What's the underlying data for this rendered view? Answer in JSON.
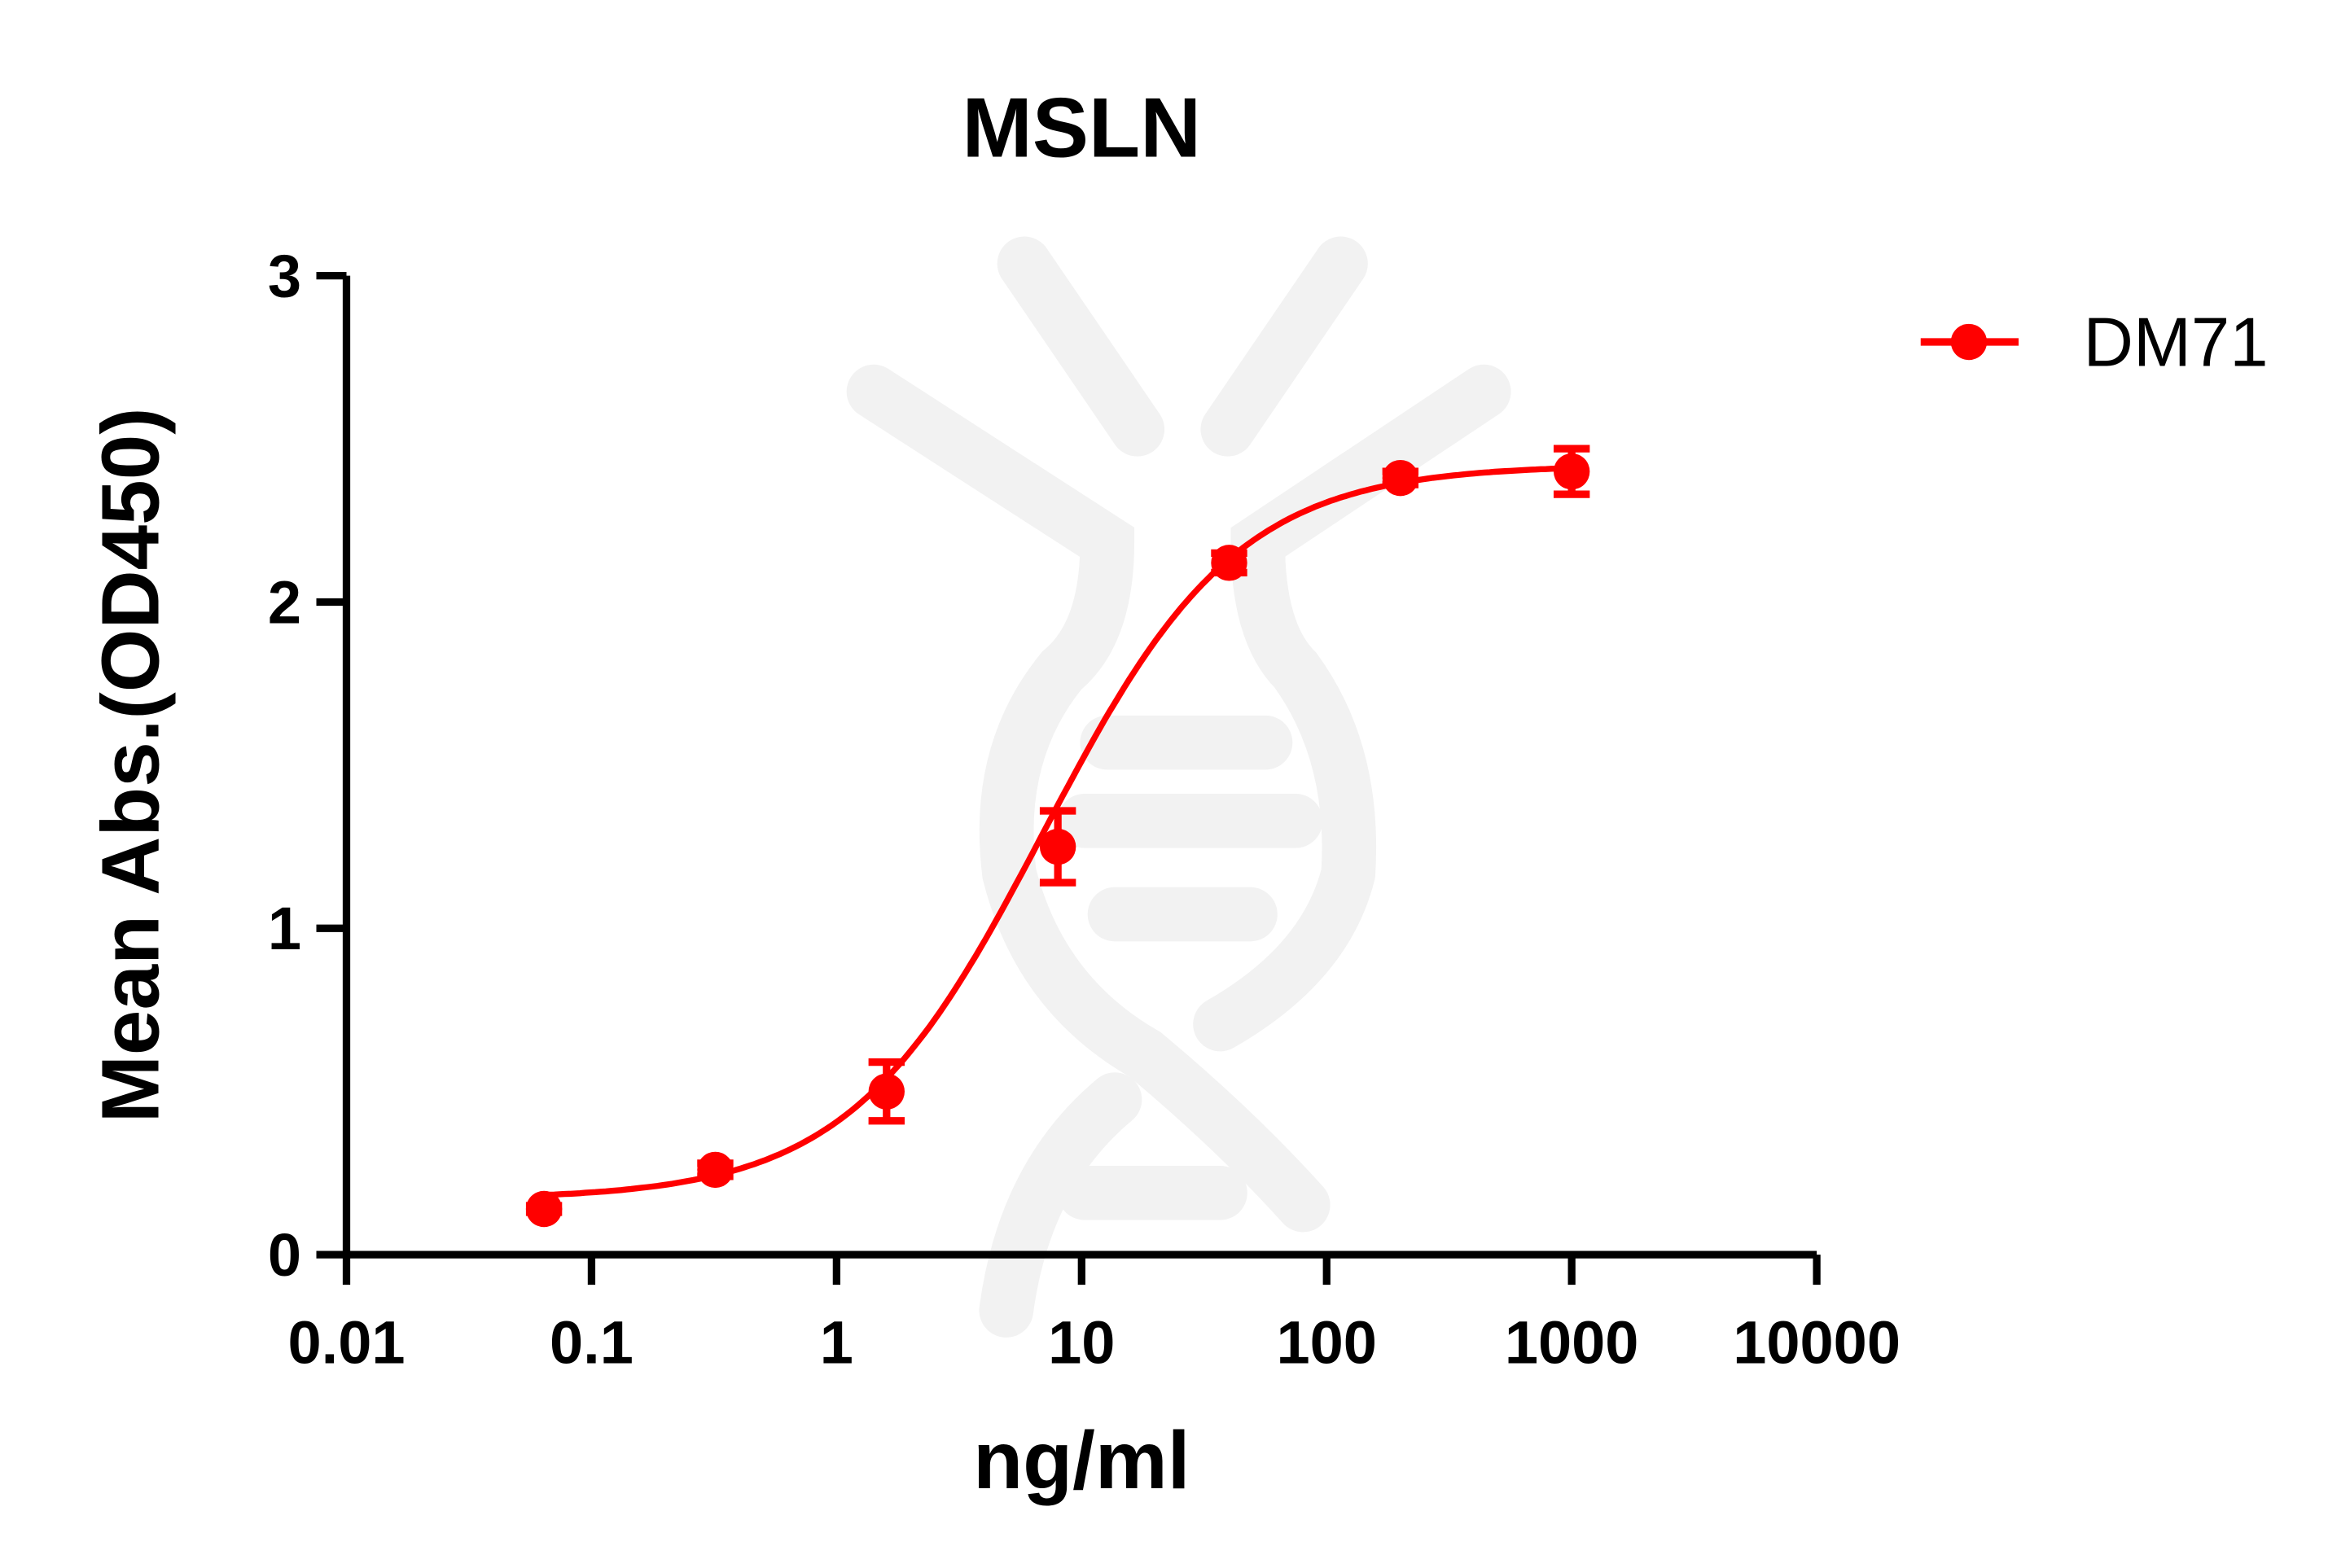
{
  "chart_data": {
    "type": "scatter",
    "title": "MSLN",
    "xlabel": "ng/ml",
    "ylabel": "Mean Abs.(OD450)",
    "xscale": "log",
    "xlim": [
      0.01,
      10000
    ],
    "ylim": [
      0,
      3
    ],
    "xticks": [
      "0.01",
      "0.1",
      "1",
      "10",
      "100",
      "1000",
      "10000"
    ],
    "yticks": [
      "0",
      "1",
      "2",
      "3"
    ],
    "grid": false,
    "legend_position": "top-right",
    "fit": "sigmoidal curve",
    "color": "#ff0000",
    "series": [
      {
        "name": "DM71",
        "x": [
          0.064,
          0.32,
          1.6,
          8,
          40,
          200,
          1000
        ],
        "y": [
          0.14,
          0.26,
          0.5,
          1.25,
          2.12,
          2.38,
          2.4
        ],
        "error": [
          0.01,
          0.02,
          0.09,
          0.11,
          0.03,
          0.02,
          0.07
        ]
      }
    ]
  }
}
